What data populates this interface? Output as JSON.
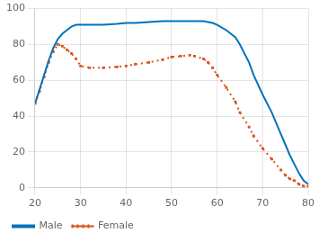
{
  "chart_data": {
    "type": "line",
    "x": [
      20,
      21,
      22,
      23,
      24,
      25,
      26,
      27,
      28,
      29,
      30,
      32,
      35,
      38,
      40,
      42,
      45,
      48,
      50,
      52,
      54,
      55,
      57,
      58,
      59,
      60,
      62,
      64,
      65,
      67,
      68,
      70,
      72,
      74,
      75,
      76,
      77,
      78,
      79,
      80
    ],
    "series": [
      {
        "name": "Male",
        "color": "#0072BD",
        "marker": "none",
        "line_style": "solid",
        "values": [
          47,
          55,
          63,
          71,
          78,
          83,
          86,
          88,
          90,
          91,
          91,
          91,
          91,
          91.5,
          92,
          92,
          92.5,
          93,
          93,
          93,
          93,
          93,
          93,
          92.5,
          92,
          91,
          88,
          84,
          80,
          70,
          63,
          52,
          42,
          30,
          24,
          18,
          13,
          8,
          4,
          2
        ]
      },
      {
        "name": "Female",
        "color": "#D95319",
        "marker": "square",
        "line_style": "dotted",
        "values": [
          47,
          54,
          62,
          70,
          76,
          80,
          79,
          77,
          75,
          72,
          68,
          67,
          67,
          67.5,
          68,
          69,
          70,
          71.5,
          73,
          73.5,
          74,
          73.5,
          72,
          70,
          67,
          63,
          56,
          48,
          42,
          34,
          29,
          22,
          16,
          10,
          7,
          5,
          4,
          2,
          1,
          1
        ]
      }
    ],
    "xlim": [
      20,
      80
    ],
    "xticks": [
      20,
      30,
      40,
      50,
      60,
      70,
      80
    ],
    "ylim": [
      0,
      100
    ],
    "yticks": [
      0,
      20,
      40,
      60,
      80,
      100
    ],
    "grid": true,
    "legend": "lower left"
  }
}
